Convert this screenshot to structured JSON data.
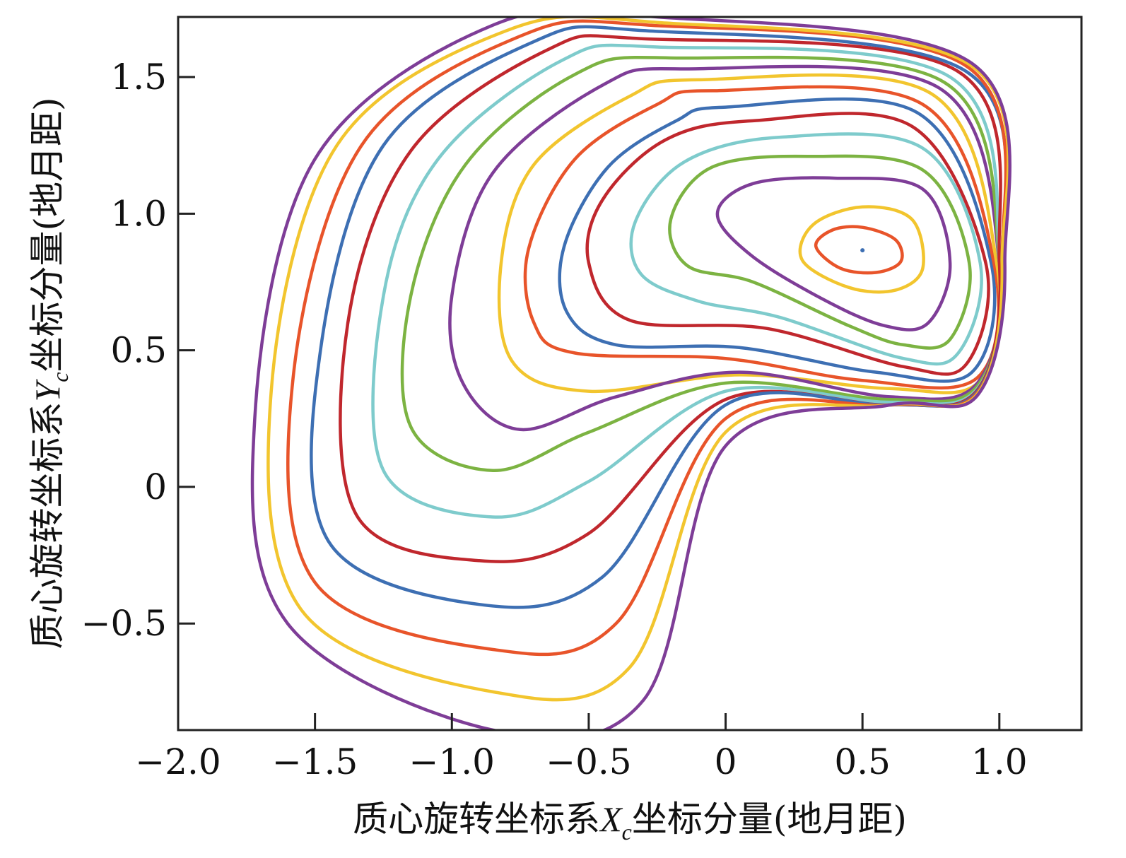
{
  "chart_data": {
    "type": "line",
    "title": "",
    "xlabel": {
      "prefix": "质心旋转坐标系",
      "var": "X",
      "sub": "c",
      "suffix": "坐标分量(地月距)"
    },
    "ylabel": {
      "prefix": "质心旋转坐标系",
      "var": "Y",
      "sub": "c",
      "suffix": "坐标分量(地月距)"
    },
    "xlim": [
      -2.0,
      1.3
    ],
    "ylim": [
      -0.89,
      1.72
    ],
    "xticks": [
      -2.0,
      -1.5,
      -1.0,
      -0.5,
      0,
      0.5,
      1.0
    ],
    "xtick_labels": [
      "−2.0",
      "−1.5",
      "−1.0",
      "−0.5",
      "0",
      "0.5",
      "1.0"
    ],
    "yticks": [
      -0.5,
      0,
      0.5,
      1.0,
      1.5
    ],
    "ytick_labels": [
      "−0.5",
      "0",
      "0.5",
      "1.0",
      "1.5"
    ],
    "grid": false,
    "legend": "none",
    "center_point": {
      "x": 0.5,
      "y": 0.866
    },
    "series": [
      {
        "color": "#e8542a",
        "points": [
          [
            0.5,
            0.95
          ],
          [
            0.62,
            0.905
          ],
          [
            0.64,
            0.825
          ],
          [
            0.55,
            0.785
          ],
          [
            0.42,
            0.8
          ],
          [
            0.33,
            0.88
          ],
          [
            0.39,
            0.94
          ]
        ]
      },
      {
        "color": "#f2c52e",
        "points": [
          [
            0.5,
            1.025
          ],
          [
            0.68,
            0.98
          ],
          [
            0.72,
            0.8
          ],
          [
            0.62,
            0.72
          ],
          [
            0.45,
            0.73
          ],
          [
            0.28,
            0.83
          ],
          [
            0.32,
            0.96
          ]
        ]
      },
      {
        "color": "#7e3d97",
        "points": [
          [
            0.4,
            1.13
          ],
          [
            0.72,
            1.09
          ],
          [
            0.82,
            0.82
          ],
          [
            0.74,
            0.6
          ],
          [
            0.58,
            0.59
          ],
          [
            0.35,
            0.69
          ],
          [
            0.09,
            0.85
          ],
          [
            -0.03,
            1.0
          ],
          [
            0.1,
            1.11
          ]
        ]
      },
      {
        "color": "#7cb342",
        "points": [
          [
            0.3,
            1.21
          ],
          [
            0.72,
            1.16
          ],
          [
            0.89,
            0.82
          ],
          [
            0.82,
            0.54
          ],
          [
            0.65,
            0.52
          ],
          [
            0.45,
            0.59
          ],
          [
            0.1,
            0.75
          ],
          [
            -0.14,
            0.81
          ],
          [
            -0.2,
            0.98
          ],
          [
            -0.05,
            1.17
          ]
        ]
      },
      {
        "color": "#7ecbcc",
        "points": [
          [
            0.2,
            1.28
          ],
          [
            0.72,
            1.24
          ],
          [
            0.93,
            0.82
          ],
          [
            0.85,
            0.49
          ],
          [
            0.65,
            0.47
          ],
          [
            0.2,
            0.62
          ],
          [
            -0.1,
            0.68
          ],
          [
            -0.31,
            0.78
          ],
          [
            -0.33,
            0.97
          ],
          [
            -0.15,
            1.19
          ]
        ]
      },
      {
        "color": "#c0272d",
        "points": [
          [
            0.1,
            1.34
          ],
          [
            0.68,
            1.32
          ],
          [
            0.95,
            0.82
          ],
          [
            0.88,
            0.45
          ],
          [
            0.65,
            0.44
          ],
          [
            0.15,
            0.58
          ],
          [
            -0.35,
            0.61
          ],
          [
            -0.5,
            0.82
          ],
          [
            -0.45,
            1.05
          ],
          [
            -0.22,
            1.27
          ]
        ]
      },
      {
        "color": "#3d6fb3",
        "points": [
          [
            0.0,
            1.39
          ],
          [
            0.7,
            1.37
          ],
          [
            0.97,
            0.82
          ],
          [
            0.9,
            0.42
          ],
          [
            0.55,
            0.42
          ],
          [
            0.05,
            0.51
          ],
          [
            -0.4,
            0.52
          ],
          [
            -0.58,
            0.64
          ],
          [
            -0.59,
            0.88
          ],
          [
            -0.43,
            1.17
          ],
          [
            -0.18,
            1.34
          ]
        ]
      },
      {
        "color": "#e8542a",
        "points": [
          [
            -0.05,
            1.45
          ],
          [
            0.72,
            1.4
          ],
          [
            0.98,
            0.82
          ],
          [
            0.92,
            0.4
          ],
          [
            0.5,
            0.39
          ],
          [
            0.0,
            0.47
          ],
          [
            -0.55,
            0.49
          ],
          [
            -0.7,
            0.6
          ],
          [
            -0.72,
            0.87
          ],
          [
            -0.55,
            1.2
          ],
          [
            -0.25,
            1.4
          ]
        ]
      },
      {
        "color": "#f2c52e",
        "points": [
          [
            -0.1,
            1.49
          ],
          [
            0.75,
            1.44
          ],
          [
            0.99,
            0.82
          ],
          [
            0.93,
            0.39
          ],
          [
            0.6,
            0.36
          ],
          [
            0.05,
            0.41
          ],
          [
            -0.5,
            0.35
          ],
          [
            -0.78,
            0.46
          ],
          [
            -0.82,
            0.82
          ],
          [
            -0.7,
            1.18
          ],
          [
            -0.35,
            1.43
          ]
        ]
      },
      {
        "color": "#7e3d97",
        "points": [
          [
            -0.15,
            1.53
          ],
          [
            0.78,
            1.46
          ],
          [
            1.0,
            0.82
          ],
          [
            0.92,
            0.38
          ],
          [
            0.6,
            0.33
          ],
          [
            0.05,
            0.42
          ],
          [
            -0.4,
            0.33
          ],
          [
            -0.75,
            0.21
          ],
          [
            -0.96,
            0.38
          ],
          [
            -1.0,
            0.7
          ],
          [
            -0.85,
            1.15
          ],
          [
            -0.45,
            1.47
          ]
        ]
      },
      {
        "color": "#7cb342",
        "points": [
          [
            -0.2,
            1.57
          ],
          [
            0.8,
            1.48
          ],
          [
            1.0,
            0.82
          ],
          [
            0.92,
            0.37
          ],
          [
            0.6,
            0.32
          ],
          [
            0.0,
            0.38
          ],
          [
            -0.5,
            0.2
          ],
          [
            -0.85,
            0.06
          ],
          [
            -1.15,
            0.22
          ],
          [
            -1.15,
            0.7
          ],
          [
            -0.95,
            1.18
          ],
          [
            -0.55,
            1.51
          ]
        ]
      },
      {
        "color": "#7ecbcc",
        "points": [
          [
            -0.25,
            1.61
          ],
          [
            0.82,
            1.5
          ],
          [
            1.0,
            0.82
          ],
          [
            0.92,
            0.36
          ],
          [
            0.6,
            0.31
          ],
          [
            0.0,
            0.35
          ],
          [
            -0.5,
            0.02
          ],
          [
            -0.85,
            -0.11
          ],
          [
            -1.25,
            0.06
          ],
          [
            -1.25,
            0.7
          ],
          [
            -1.05,
            1.2
          ],
          [
            -0.6,
            1.56
          ]
        ]
      },
      {
        "color": "#c0272d",
        "points": [
          [
            -0.3,
            1.64
          ],
          [
            0.85,
            1.52
          ],
          [
            1.0,
            0.82
          ],
          [
            0.92,
            0.355
          ],
          [
            0.6,
            0.3
          ],
          [
            0.0,
            0.32
          ],
          [
            -0.5,
            -0.17
          ],
          [
            -0.9,
            -0.27
          ],
          [
            -1.35,
            -0.1
          ],
          [
            -1.38,
            0.6
          ],
          [
            -1.15,
            1.23
          ],
          [
            -0.65,
            1.6
          ]
        ]
      },
      {
        "color": "#3d6fb3",
        "points": [
          [
            -0.3,
            1.67
          ],
          [
            0.88,
            1.52
          ],
          [
            1.01,
            0.82
          ],
          [
            0.92,
            0.35
          ],
          [
            0.6,
            0.3
          ],
          [
            0.0,
            0.3
          ],
          [
            -0.45,
            -0.33
          ],
          [
            -0.9,
            -0.43
          ],
          [
            -1.45,
            -0.2
          ],
          [
            -1.48,
            0.5
          ],
          [
            -1.25,
            1.25
          ],
          [
            -0.7,
            1.63
          ]
        ]
      },
      {
        "color": "#e8542a",
        "points": [
          [
            -0.28,
            1.69
          ],
          [
            0.88,
            1.54
          ],
          [
            1.01,
            0.82
          ],
          [
            0.92,
            0.345
          ],
          [
            0.6,
            0.3
          ],
          [
            0.0,
            0.25
          ],
          [
            -0.4,
            -0.5
          ],
          [
            -0.85,
            -0.595
          ],
          [
            -1.5,
            -0.35
          ],
          [
            -1.58,
            0.4
          ],
          [
            -1.33,
            1.25
          ],
          [
            -0.75,
            1.65
          ]
        ]
      },
      {
        "color": "#f2c52e",
        "points": [
          [
            -0.25,
            1.7
          ],
          [
            0.9,
            1.54
          ],
          [
            1.01,
            0.82
          ],
          [
            0.92,
            0.34
          ],
          [
            0.6,
            0.3
          ],
          [
            0.0,
            0.2
          ],
          [
            -0.35,
            -0.66
          ],
          [
            -0.85,
            -0.75
          ],
          [
            -1.55,
            -0.45
          ],
          [
            -1.66,
            0.35
          ],
          [
            -1.42,
            1.25
          ],
          [
            -0.8,
            1.67
          ]
        ]
      },
      {
        "color": "#7e3d97",
        "points": [
          [
            -0.25,
            1.72
          ],
          [
            0.9,
            1.55
          ],
          [
            1.02,
            0.82
          ],
          [
            0.92,
            0.335
          ],
          [
            0.6,
            0.3
          ],
          [
            0.0,
            0.15
          ],
          [
            -0.3,
            -0.78
          ],
          [
            -0.85,
            -0.89
          ],
          [
            -1.6,
            -0.5
          ],
          [
            -1.72,
            0.25
          ],
          [
            -1.5,
            1.2
          ],
          [
            -0.85,
            1.69
          ]
        ]
      }
    ]
  }
}
